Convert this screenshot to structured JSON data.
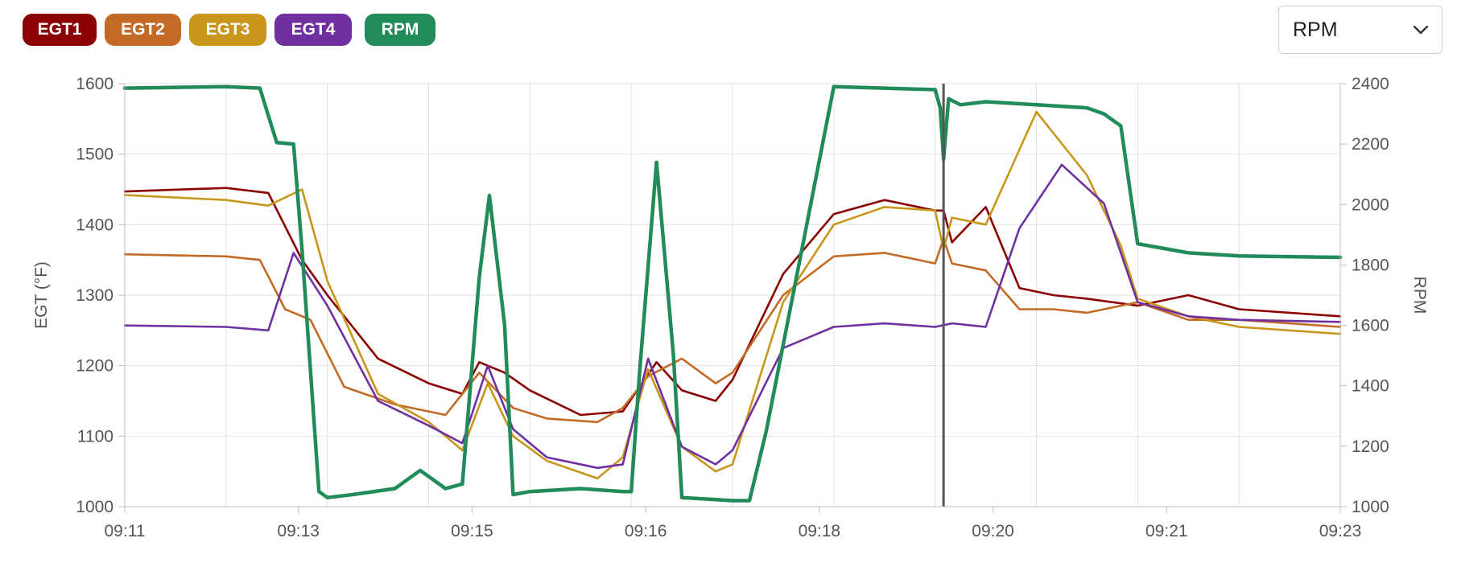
{
  "legend": {
    "items": [
      {
        "label": "EGT1",
        "color": "#8b0000",
        "key": "egt1"
      },
      {
        "label": "EGT2",
        "color": "#c36a26",
        "key": "egt2"
      },
      {
        "label": "EGT3",
        "color": "#c7961b",
        "key": "egt3"
      },
      {
        "label": "EGT4",
        "color": "#7030a0",
        "key": "egt4"
      },
      {
        "label": "RPM",
        "color": "#218b5a",
        "key": "rpm"
      }
    ]
  },
  "axis_select": {
    "value": "RPM",
    "icon": "chevron-down-icon"
  },
  "chart_data": {
    "type": "line",
    "x": [
      "09:11",
      "09:12",
      "09:13",
      "09:14",
      "09:15",
      "09:16",
      "09:17",
      "09:18",
      "09:19",
      "09:20",
      "09:21",
      "09:22",
      "09:23"
    ],
    "x_tick_labels": [
      "09:11",
      "09:13",
      "09:15",
      "09:16",
      "09:18",
      "09:20",
      "09:21",
      "09:23"
    ],
    "xlim": [
      "09:11",
      "09:23"
    ],
    "ylabel": "EGT (°F)",
    "ylim": [
      1000,
      1600
    ],
    "y_ticks": [
      1000,
      1100,
      1200,
      1300,
      1400,
      1500,
      1600
    ],
    "y2label": "RPM",
    "y2lim": [
      1000,
      2400
    ],
    "y2_ticks": [
      1000,
      1200,
      1400,
      1600,
      1800,
      2000,
      2200,
      2400
    ],
    "grid": true,
    "marker_x": "09:19:05",
    "series": [
      {
        "name": "EGT1",
        "axis": "left",
        "color": "#8b0000",
        "x": [
          "09:11:00",
          "09:12:00",
          "09:12:25",
          "09:12:45",
          "09:13:00",
          "09:13:30",
          "09:14:00",
          "09:14:20",
          "09:14:30",
          "09:14:45",
          "09:15:00",
          "09:15:30",
          "09:15:55",
          "09:16:15",
          "09:16:30",
          "09:16:50",
          "09:17:00",
          "09:17:30",
          "09:18:00",
          "09:18:30",
          "09:19:00",
          "09:19:05",
          "09:19:10",
          "09:19:30",
          "09:19:50",
          "09:20:10",
          "09:20:30",
          "09:21:00",
          "09:21:30",
          "09:22:00",
          "09:23:00"
        ],
        "y": [
          1447,
          1452,
          1445,
          1350,
          1300,
          1210,
          1175,
          1160,
          1205,
          1190,
          1165,
          1130,
          1135,
          1205,
          1165,
          1150,
          1180,
          1330,
          1415,
          1435,
          1420,
          1420,
          1375,
          1425,
          1310,
          1300,
          1295,
          1285,
          1300,
          1280,
          1270
        ]
      },
      {
        "name": "EGT2",
        "axis": "left",
        "color": "#c36a26",
        "x": [
          "09:11:00",
          "09:12:00",
          "09:12:20",
          "09:12:35",
          "09:12:50",
          "09:13:10",
          "09:13:40",
          "09:14:10",
          "09:14:30",
          "09:14:50",
          "09:15:10",
          "09:15:40",
          "09:15:55",
          "09:16:10",
          "09:16:30",
          "09:16:50",
          "09:17:00",
          "09:17:30",
          "09:18:00",
          "09:18:30",
          "09:19:00",
          "09:19:05",
          "09:19:10",
          "09:19:30",
          "09:19:50",
          "09:20:10",
          "09:20:30",
          "09:21:00",
          "09:21:30",
          "09:22:00",
          "09:23:00"
        ],
        "y": [
          1358,
          1355,
          1350,
          1280,
          1265,
          1170,
          1145,
          1130,
          1190,
          1140,
          1125,
          1120,
          1140,
          1185,
          1210,
          1175,
          1190,
          1300,
          1355,
          1360,
          1345,
          1380,
          1345,
          1335,
          1280,
          1280,
          1275,
          1290,
          1265,
          1265,
          1255
        ]
      },
      {
        "name": "EGT3",
        "axis": "left",
        "color": "#c7961b",
        "x": [
          "09:11:00",
          "09:12:00",
          "09:12:25",
          "09:12:45",
          "09:13:00",
          "09:13:30",
          "09:14:00",
          "09:14:20",
          "09:14:35",
          "09:14:50",
          "09:15:10",
          "09:15:40",
          "09:15:55",
          "09:16:10",
          "09:16:30",
          "09:16:50",
          "09:17:00",
          "09:17:30",
          "09:18:00",
          "09:18:30",
          "09:19:00",
          "09:19:05",
          "09:19:10",
          "09:19:30",
          "09:20:00",
          "09:20:30",
          "09:20:50",
          "09:21:00",
          "09:21:30",
          "09:22:00",
          "09:23:00"
        ],
        "y": [
          1442,
          1435,
          1427,
          1450,
          1320,
          1160,
          1120,
          1080,
          1175,
          1100,
          1065,
          1040,
          1070,
          1195,
          1085,
          1050,
          1060,
          1290,
          1400,
          1425,
          1420,
          1365,
          1410,
          1400,
          1560,
          1470,
          1370,
          1295,
          1270,
          1255,
          1245
        ]
      },
      {
        "name": "EGT4",
        "axis": "left",
        "color": "#7030a0",
        "x": [
          "09:11:00",
          "09:12:00",
          "09:12:25",
          "09:12:40",
          "09:13:00",
          "09:13:30",
          "09:14:00",
          "09:14:20",
          "09:14:35",
          "09:14:50",
          "09:15:10",
          "09:15:40",
          "09:15:55",
          "09:16:10",
          "09:16:30",
          "09:16:50",
          "09:17:00",
          "09:17:30",
          "09:18:00",
          "09:18:30",
          "09:19:00",
          "09:19:10",
          "09:19:30",
          "09:19:50",
          "09:20:15",
          "09:20:40",
          "09:21:00",
          "09:21:30",
          "09:22:00",
          "09:23:00"
        ],
        "y": [
          1257,
          1255,
          1250,
          1360,
          1285,
          1150,
          1115,
          1090,
          1200,
          1110,
          1070,
          1055,
          1060,
          1210,
          1085,
          1060,
          1080,
          1225,
          1255,
          1260,
          1255,
          1260,
          1255,
          1395,
          1485,
          1430,
          1290,
          1270,
          1265,
          1262
        ]
      },
      {
        "name": "RPM",
        "axis": "right",
        "color": "#218b5a",
        "x": [
          "09:11:00",
          "09:12:00",
          "09:12:20",
          "09:12:30",
          "09:12:40",
          "09:12:45",
          "09:12:55",
          "09:13:00",
          "09:13:15",
          "09:13:40",
          "09:13:55",
          "09:14:10",
          "09:14:20",
          "09:14:30",
          "09:14:36",
          "09:14:45",
          "09:14:50",
          "09:15:00",
          "09:15:30",
          "09:15:55",
          "09:16:00",
          "09:16:05",
          "09:16:15",
          "09:16:25",
          "09:16:30",
          "09:17:00",
          "09:17:10",
          "09:17:20",
          "09:18:00",
          "09:18:30",
          "09:19:00",
          "09:19:03",
          "09:19:05",
          "09:19:08",
          "09:19:15",
          "09:19:30",
          "09:20:00",
          "09:20:30",
          "09:20:40",
          "09:20:50",
          "09:21:00",
          "09:21:30",
          "09:22:00",
          "09:23:00"
        ],
        "y": [
          2385,
          2390,
          2385,
          2205,
          2200,
          1850,
          1050,
          1030,
          1040,
          1060,
          1120,
          1060,
          1075,
          1760,
          2030,
          1600,
          1040,
          1050,
          1060,
          1050,
          1050,
          1450,
          2140,
          1500,
          1030,
          1020,
          1020,
          1250,
          2390,
          2385,
          2380,
          2320,
          2150,
          2350,
          2330,
          2340,
          2330,
          2320,
          2300,
          2260,
          1870,
          1840,
          1830,
          1825
        ]
      }
    ]
  }
}
